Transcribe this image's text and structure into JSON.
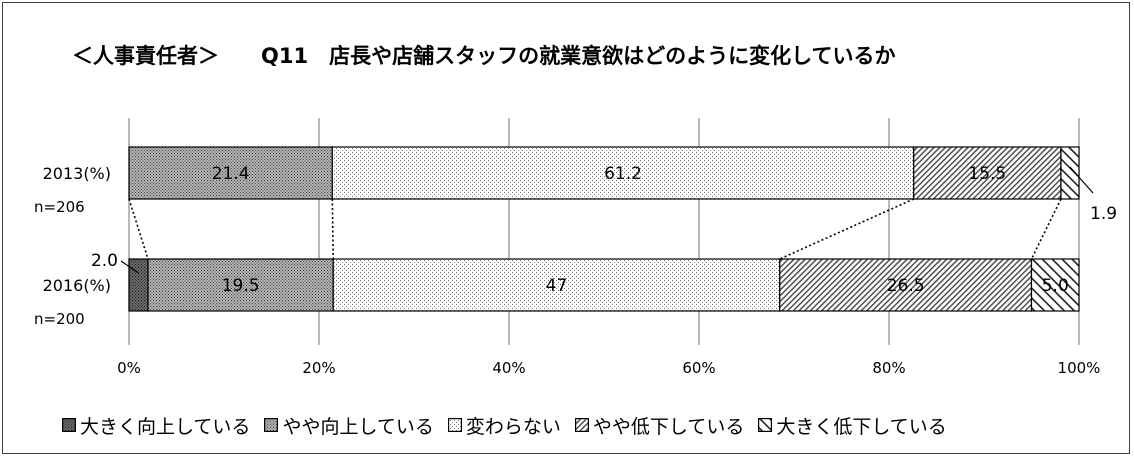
{
  "chart_data": {
    "type": "bar",
    "orientation": "horizontal",
    "stacked": true,
    "title": "＜人事責任者＞　　Q11　店長や店舗スタッフの就業意欲はどのように変化しているか",
    "categories": [
      "2013(%)",
      "2016(%)"
    ],
    "category_notes": [
      "n=206",
      "n=200"
    ],
    "series": [
      {
        "name": "大きく向上している",
        "values": [
          0,
          2.0
        ],
        "pattern": "dense-dots",
        "color": "#5a5a5a"
      },
      {
        "name": "やや向上している",
        "values": [
          21.4,
          19.5
        ],
        "pattern": "medium-dots",
        "color": "#a8a8a8"
      },
      {
        "name": "変わらない",
        "values": [
          61.2,
          47
        ],
        "pattern": "sparse-dots",
        "color": "#ececec"
      },
      {
        "name": "やや低下している",
        "values": [
          15.5,
          26.5
        ],
        "pattern": "fine-diagonal",
        "color": "#c8c8c8"
      },
      {
        "name": "大きく低下している",
        "values": [
          1.9,
          5.0
        ],
        "pattern": "wide-diagonal",
        "color": "#ffffff"
      }
    ],
    "data_labels": [
      [
        "",
        "21.4",
        "61.2",
        "15.5",
        "1.9"
      ],
      [
        "2.0",
        "19.5",
        "47",
        "26.5",
        "5.0"
      ]
    ],
    "x_ticks": [
      "0%",
      "20%",
      "40%",
      "60%",
      "80%",
      "100%"
    ],
    "xlim": [
      0,
      100
    ],
    "grid": "vertical",
    "legend": "bottom",
    "series_lines": "dotted connectors between bars"
  }
}
